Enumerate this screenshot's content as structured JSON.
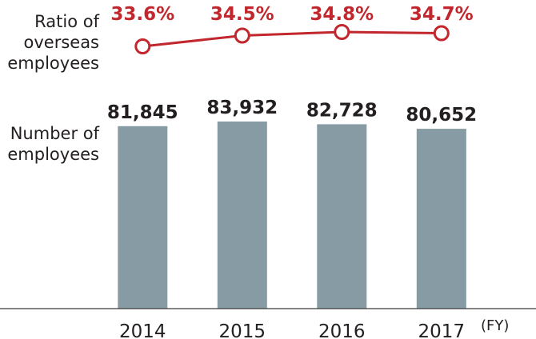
{
  "chart_data": {
    "type": "bar",
    "categories": [
      "2014",
      "2015",
      "2016",
      "2017"
    ],
    "x_unit": "(FY)",
    "bar_series": {
      "label_lines": [
        "Number of",
        "employees"
      ],
      "values": [
        81845,
        83932,
        82728,
        80652
      ],
      "value_labels": [
        "81,845",
        "83,932",
        "82,728",
        "80,652"
      ],
      "ylim": [
        0,
        85000
      ]
    },
    "line_series": {
      "label_lines": [
        "Ratio of",
        "overseas",
        "employees"
      ],
      "values": [
        33.6,
        34.5,
        34.8,
        34.7
      ],
      "value_labels": [
        "33.6%",
        "34.5%",
        "34.8%",
        "34.7%"
      ],
      "ylim": [
        33.0,
        35.5
      ]
    },
    "grid": false,
    "legend": "none"
  },
  "colors": {
    "bar": "#869ba3",
    "line": "#c1272d",
    "marker_fill": "#ffffff",
    "axis": "#3c3c3c",
    "text": "#231f20"
  }
}
